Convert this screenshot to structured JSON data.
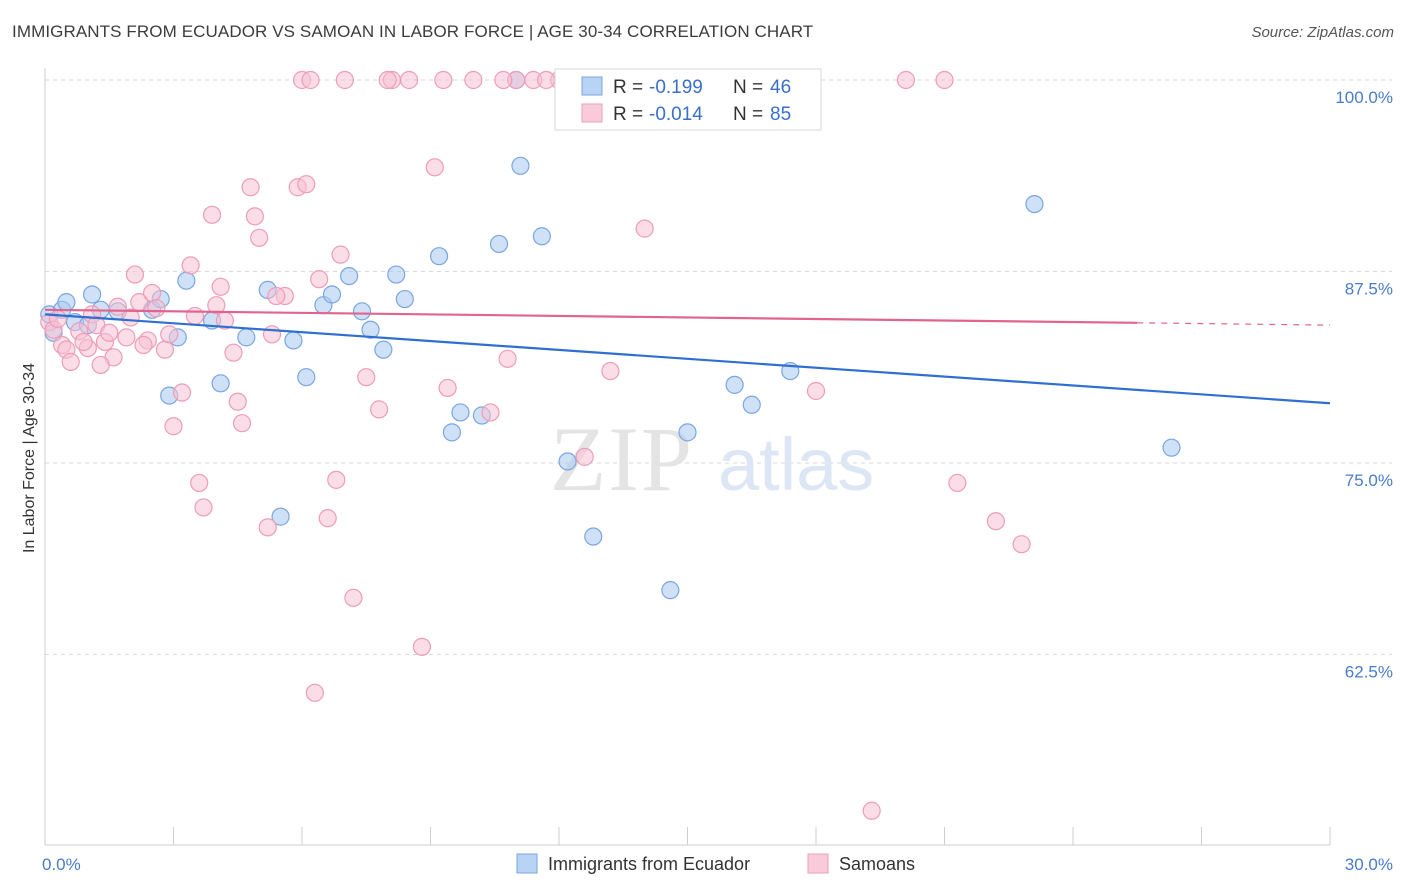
{
  "title": "IMMIGRANTS FROM ECUADOR VS SAMOAN IN LABOR FORCE | AGE 30-34 CORRELATION CHART",
  "source": "Source: ZipAtlas.com",
  "watermark": {
    "zip": "ZIP",
    "atlas": "atlas"
  },
  "chart_data": {
    "type": "scatter",
    "ylabel": "In Labor Force | Age 30-34",
    "xlim": [
      0,
      30
    ],
    "ylim": [
      50,
      100
    ],
    "x_tick_labels": {
      "min": "0.0%",
      "max": "30.0%"
    },
    "y_ticks": [
      {
        "value": 100,
        "label": "100.0%"
      },
      {
        "value": 87.5,
        "label": "87.5%"
      },
      {
        "value": 75,
        "label": "75.0%"
      },
      {
        "value": 62.5,
        "label": "62.5%"
      }
    ],
    "legend_stats": [
      {
        "r_label": "R =",
        "r": "-0.199",
        "n_label": "N =",
        "n": "46"
      },
      {
        "r_label": "R =",
        "r": "-0.014",
        "n_label": "N =",
        "n": "85"
      }
    ],
    "series": [
      {
        "name": "Immigrants from Ecuador",
        "color": "#a8c8f0",
        "stroke": "#7aa6e0",
        "line_color": "#2f6fcf",
        "trend": {
          "x0": 0,
          "y0": 84.7,
          "x1": 30,
          "y1": 78.9,
          "dash_from": null
        },
        "points": [
          [
            0.1,
            84.7
          ],
          [
            0.2,
            83.5
          ],
          [
            0.4,
            85
          ],
          [
            0.7,
            84.2
          ],
          [
            1.0,
            84.0
          ],
          [
            1.1,
            86.0
          ],
          [
            1.3,
            85.0
          ],
          [
            1.7,
            84.9
          ],
          [
            2.5,
            85.0
          ],
          [
            2.7,
            85.7
          ],
          [
            2.9,
            79.4
          ],
          [
            3.1,
            83.2
          ],
          [
            3.3,
            86.9
          ],
          [
            3.9,
            84.3
          ],
          [
            4.1,
            80.2
          ],
          [
            4.7,
            83.2
          ],
          [
            5.2,
            86.3
          ],
          [
            5.5,
            71.5
          ],
          [
            5.8,
            83.0
          ],
          [
            6.1,
            80.6
          ],
          [
            6.5,
            85.3
          ],
          [
            6.7,
            86.0
          ],
          [
            7.1,
            87.2
          ],
          [
            7.4,
            84.9
          ],
          [
            7.6,
            83.7
          ],
          [
            7.9,
            82.4
          ],
          [
            8.2,
            87.3
          ],
          [
            8.4,
            85.7
          ],
          [
            9.2,
            88.5
          ],
          [
            9.5,
            77.0
          ],
          [
            9.7,
            78.3
          ],
          [
            10.2,
            78.1
          ],
          [
            10.6,
            89.3
          ],
          [
            11.0,
            100.0
          ],
          [
            11.1,
            94.4
          ],
          [
            11.6,
            89.8
          ],
          [
            12.2,
            75.1
          ],
          [
            12.8,
            70.2
          ],
          [
            14.6,
            66.7
          ],
          [
            15.0,
            77.0
          ],
          [
            16.1,
            80.1
          ],
          [
            16.5,
            78.8
          ],
          [
            17.4,
            81.0
          ],
          [
            23.1,
            91.9
          ],
          [
            26.3,
            76.0
          ],
          [
            0.5,
            85.5
          ]
        ]
      },
      {
        "name": "Samoans",
        "color": "#f7c1d3",
        "stroke": "#ee9cb8",
        "line_color": "#e0648e",
        "trend": {
          "x0": 0,
          "y0": 85.0,
          "x1": 30,
          "y1": 84.0,
          "dash_from": 25.5
        },
        "points": [
          [
            0.1,
            84.2
          ],
          [
            0.2,
            83.7
          ],
          [
            0.4,
            82.7
          ],
          [
            0.5,
            82.4
          ],
          [
            0.6,
            81.6
          ],
          [
            0.8,
            83.6
          ],
          [
            1.0,
            82.5
          ],
          [
            1.1,
            84.7
          ],
          [
            1.2,
            84.0
          ],
          [
            1.4,
            82.9
          ],
          [
            1.5,
            83.5
          ],
          [
            1.6,
            81.9
          ],
          [
            1.9,
            83.2
          ],
          [
            2.0,
            84.5
          ],
          [
            2.1,
            87.3
          ],
          [
            2.2,
            85.5
          ],
          [
            2.4,
            83.0
          ],
          [
            2.5,
            86.1
          ],
          [
            2.6,
            85.1
          ],
          [
            2.8,
            82.4
          ],
          [
            2.9,
            83.4
          ],
          [
            3.0,
            77.4
          ],
          [
            3.2,
            79.6
          ],
          [
            3.4,
            87.9
          ],
          [
            3.5,
            84.6
          ],
          [
            3.6,
            73.7
          ],
          [
            3.7,
            72.1
          ],
          [
            3.9,
            91.2
          ],
          [
            4.0,
            85.3
          ],
          [
            4.1,
            86.5
          ],
          [
            4.2,
            84.3
          ],
          [
            4.4,
            82.2
          ],
          [
            4.6,
            77.6
          ],
          [
            4.8,
            93.0
          ],
          [
            4.9,
            91.1
          ],
          [
            5.0,
            89.7
          ],
          [
            5.2,
            70.8
          ],
          [
            5.3,
            83.4
          ],
          [
            5.6,
            85.9
          ],
          [
            5.9,
            93.0
          ],
          [
            6.1,
            93.2
          ],
          [
            6.3,
            60.0
          ],
          [
            6.4,
            87.0
          ],
          [
            6.6,
            71.4
          ],
          [
            6.8,
            73.9
          ],
          [
            6.9,
            88.6
          ],
          [
            7.2,
            66.2
          ],
          [
            7.5,
            80.6
          ],
          [
            7.8,
            78.5
          ],
          [
            8.1,
            100.0
          ],
          [
            8.5,
            100.0
          ],
          [
            8.8,
            63.0
          ],
          [
            9.1,
            94.3
          ],
          [
            9.4,
            79.9
          ],
          [
            10.0,
            100.0
          ],
          [
            10.4,
            78.3
          ],
          [
            10.8,
            81.8
          ],
          [
            11.0,
            100.0
          ],
          [
            11.4,
            100.0
          ],
          [
            12.0,
            100.0
          ],
          [
            12.6,
            75.4
          ],
          [
            13.2,
            81.0
          ],
          [
            14.0,
            90.3
          ],
          [
            18.0,
            79.7
          ],
          [
            19.3,
            52.3
          ],
          [
            20.1,
            100.0
          ],
          [
            21.0,
            100.0
          ],
          [
            21.3,
            73.7
          ],
          [
            22.2,
            71.2
          ],
          [
            22.8,
            69.7
          ],
          [
            6.0,
            100.0
          ],
          [
            7.0,
            100.0
          ],
          [
            8.0,
            100.0
          ],
          [
            9.3,
            100.0
          ],
          [
            10.7,
            100.0
          ],
          [
            11.7,
            100.0
          ],
          [
            13.6,
            100.0
          ],
          [
            5.4,
            85.9
          ],
          [
            6.2,
            100.0
          ],
          [
            1.3,
            81.4
          ],
          [
            0.3,
            84.4
          ],
          [
            0.9,
            82.9
          ],
          [
            1.7,
            85.2
          ],
          [
            2.3,
            82.7
          ],
          [
            4.5,
            79.0
          ]
        ]
      }
    ]
  }
}
